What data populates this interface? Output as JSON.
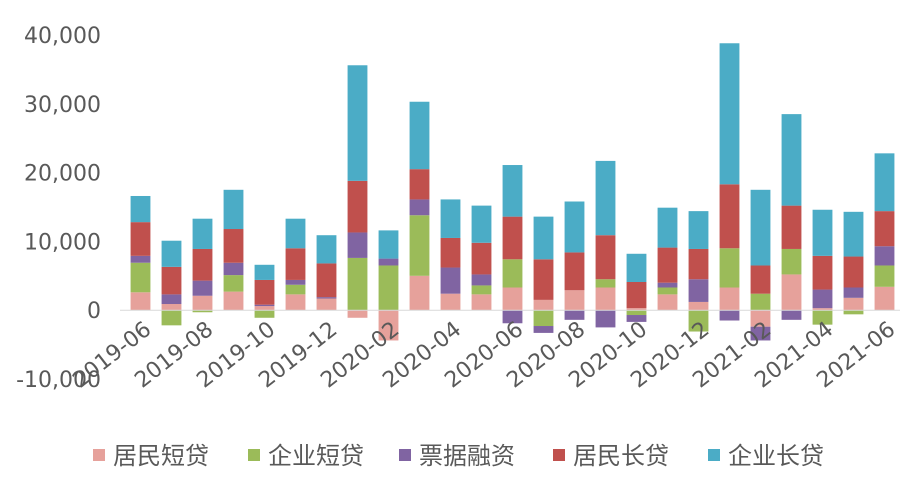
{
  "chart_data": {
    "type": "bar",
    "stacked": true,
    "title": "",
    "xlabel": "",
    "ylabel": "",
    "ylim": [
      -10000,
      40000
    ],
    "y_ticks": [
      -10000,
      0,
      10000,
      20000,
      30000,
      40000
    ],
    "y_tick_labels": [
      "-10,000",
      "0",
      "10,000",
      "20,000",
      "30,000",
      "40,000"
    ],
    "grid": false,
    "legend_position": "bottom",
    "categories": [
      "2019-06",
      "2019-07",
      "2019-08",
      "2019-09",
      "2019-10",
      "2019-11",
      "2019-12",
      "2020-01",
      "2020-02",
      "2020-03",
      "2020-04",
      "2020-05",
      "2020-06",
      "2020-07",
      "2020-08",
      "2020-09",
      "2020-10",
      "2020-11",
      "2020-12",
      "2021-01",
      "2021-02",
      "2021-03",
      "2021-04",
      "2021-05",
      "2021-06"
    ],
    "x_tick_labels": [
      "2019-06",
      "2019-08",
      "2019-10",
      "2019-12",
      "2020-02",
      "2020-04",
      "2020-06",
      "2020-08",
      "2020-10",
      "2020-12",
      "2021-02",
      "2021-04",
      "2021-06"
    ],
    "series": [
      {
        "name": "居民短贷",
        "color": "#E6A19B",
        "values": [
          2600,
          900,
          2100,
          2700,
          600,
          2300,
          1700,
          -1100,
          -4400,
          5000,
          2400,
          2300,
          3300,
          1500,
          2900,
          3300,
          300,
          2300,
          1200,
          3300,
          -2400,
          5200,
          300,
          1800,
          3400
        ]
      },
      {
        "name": "企业短贷",
        "color": "#9BBB59",
        "values": [
          4300,
          -2200,
          -300,
          2400,
          -1100,
          1400,
          0,
          7600,
          6500,
          8800,
          0,
          1300,
          4100,
          -2300,
          0,
          1200,
          -700,
          1000,
          -3100,
          5700,
          2400,
          3700,
          -2100,
          -600,
          3100
        ]
      },
      {
        "name": "票据融资",
        "color": "#8064A2",
        "values": [
          1000,
          1400,
          2200,
          1800,
          200,
          700,
          200,
          3700,
          1000,
          2300,
          3800,
          1600,
          -1900,
          -1000,
          -1400,
          -2500,
          -1000,
          700,
          3300,
          -1500,
          -2000,
          -1400,
          2700,
          1500,
          2800
        ]
      },
      {
        "name": "居民长贷",
        "color": "#C0504D",
        "values": [
          4900,
          4000,
          4600,
          4900,
          3600,
          4600,
          4900,
          7500,
          0,
          4400,
          4300,
          4600,
          6200,
          5900,
          5500,
          6400,
          3800,
          5100,
          4400,
          9300,
          4100,
          6300,
          4900,
          4500,
          5100
        ]
      },
      {
        "name": "企业长贷",
        "color": "#4BACC6",
        "values": [
          3800,
          3800,
          4400,
          5700,
          2200,
          4300,
          4100,
          16800,
          4100,
          9800,
          5600,
          5400,
          7500,
          6200,
          7400,
          10800,
          4100,
          5800,
          5500,
          20500,
          11000,
          13300,
          6700,
          6500,
          8400
        ]
      }
    ]
  }
}
